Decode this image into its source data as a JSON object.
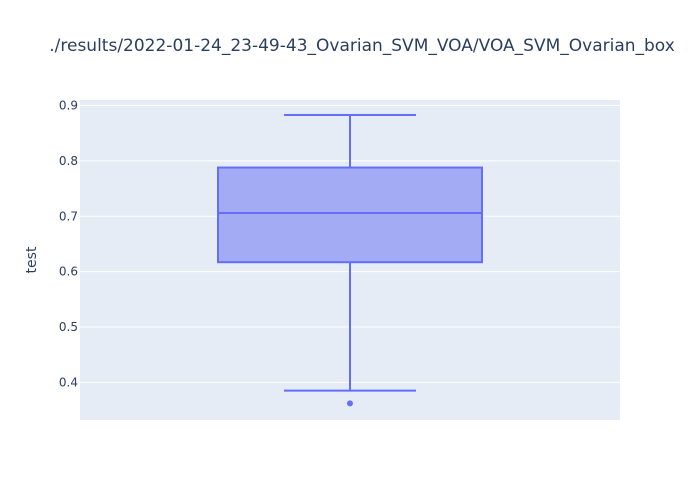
{
  "chart_data": {
    "type": "box",
    "title": "./results/2022-01-24_23-49-43_Ovarian_SVM_VOA/VOA_SVM_Ovarian_box",
    "xlabel": "",
    "ylabel": "test",
    "ylim": [
      0.332,
      0.91
    ],
    "yticks": [
      "0.4",
      "0.5",
      "0.6",
      "0.7",
      "0.8",
      "0.9"
    ],
    "grid": true,
    "series": [
      {
        "q1": 0.617,
        "median": 0.706,
        "q3": 0.788,
        "lower_whisker": 0.385,
        "upper_whisker": 0.883,
        "outliers": [
          0.362
        ]
      }
    ]
  },
  "colors": {
    "plot_bg": "#e5ecf6",
    "grid": "#ffffff",
    "box_fill": "#a3abf5",
    "box_line": "#636efa",
    "text": "#2a3f5f"
  }
}
